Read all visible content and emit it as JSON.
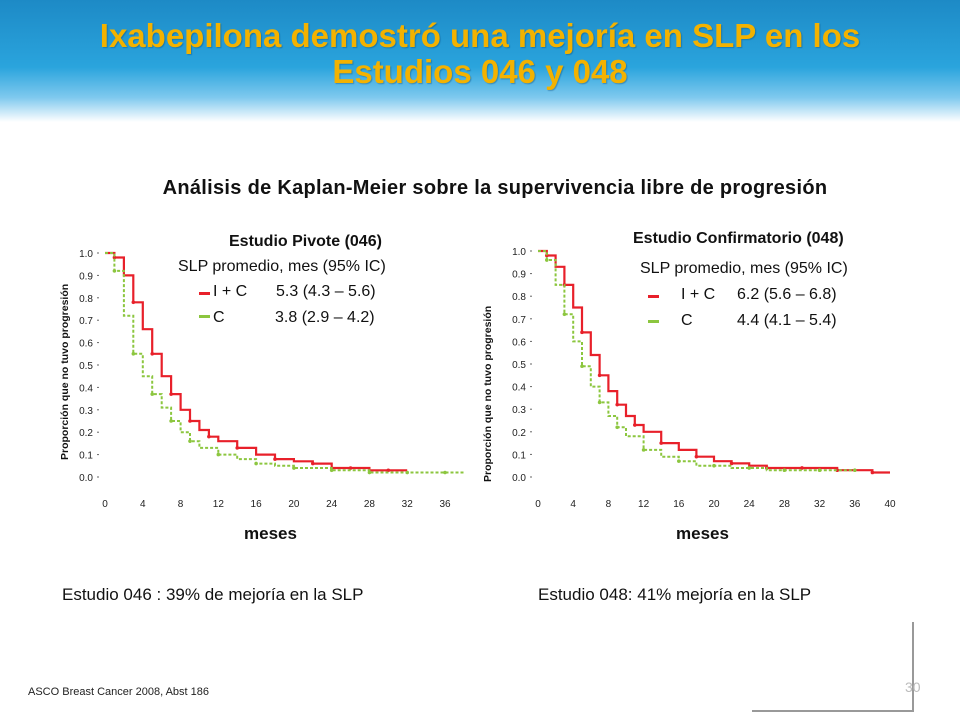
{
  "slide": {
    "title_line1": "Ixabepilona demostró una mejoría en SLP en los",
    "title_line2": "Estudios 046 y 048",
    "subtitle": "Análisis de Kaplan-Meier sobre la supervivencia libre de progresión",
    "reference": "ASCO Breast Cancer 2008, Abst 186",
    "page_number": "30",
    "title_color": "#f3b200"
  },
  "chart_data": [
    {
      "type": "line",
      "title": "Estudio Pivote (046)",
      "legend_header": "SLP promedio, mes (95% IC)",
      "legend": [
        {
          "label": "I + C",
          "value": "5.3 (4.3 – 5.6)",
          "color": "#e8202a"
        },
        {
          "label": "C",
          "value": "3.8 (2.9 – 4.2)",
          "color": "#8cc63f"
        }
      ],
      "xlabel": "meses",
      "ylabel": "Proporción que no tuvo progresión",
      "xticks": [
        "0",
        "4",
        "8",
        "12",
        "16",
        "20",
        "24",
        "28",
        "32",
        "36"
      ],
      "yticks": [
        "0.0",
        "0.1",
        "0.2",
        "0.3",
        "0.4",
        "0.5",
        "0.6",
        "0.7",
        "0.8",
        "0.9",
        "1.0"
      ],
      "xlim": [
        0,
        38
      ],
      "ylim": [
        0,
        1
      ],
      "series": [
        {
          "name": "I + C",
          "color": "#e8202a",
          "x": [
            0,
            1,
            2,
            3,
            4,
            5,
            6,
            7,
            8,
            9,
            10,
            11,
            12,
            14,
            16,
            18,
            20,
            22,
            24,
            26,
            28,
            30,
            32
          ],
          "y": [
            1.0,
            0.98,
            0.9,
            0.78,
            0.66,
            0.55,
            0.45,
            0.37,
            0.3,
            0.25,
            0.21,
            0.18,
            0.16,
            0.13,
            0.1,
            0.08,
            0.07,
            0.06,
            0.04,
            0.04,
            0.03,
            0.03,
            0.03
          ]
        },
        {
          "name": "C",
          "color": "#8cc63f",
          "x": [
            0,
            1,
            2,
            3,
            4,
            5,
            6,
            7,
            8,
            9,
            10,
            12,
            14,
            16,
            18,
            20,
            22,
            24,
            26,
            28,
            30,
            32,
            34,
            36,
            38
          ],
          "y": [
            1.0,
            0.92,
            0.72,
            0.55,
            0.45,
            0.37,
            0.31,
            0.25,
            0.2,
            0.16,
            0.13,
            0.1,
            0.08,
            0.06,
            0.05,
            0.04,
            0.04,
            0.03,
            0.03,
            0.02,
            0.02,
            0.02,
            0.02,
            0.02,
            0.02
          ]
        }
      ]
    },
    {
      "type": "line",
      "title": "Estudio Confirmatorio (048)",
      "legend_header": "SLP promedio, mes (95% IC)",
      "legend": [
        {
          "label": "I + C",
          "value": "6.2 (5.6 – 6.8)",
          "color": "#e8202a"
        },
        {
          "label": "C",
          "value": "4.4 (4.1 – 5.4)",
          "color": "#8cc63f"
        }
      ],
      "xlabel": "meses",
      "ylabel": "Proporción que no tuvo progresión",
      "xticks": [
        "0",
        "4",
        "8",
        "12",
        "16",
        "20",
        "24",
        "28",
        "32",
        "36",
        "40"
      ],
      "yticks": [
        "0.0",
        "0.1",
        "0.2",
        "0.3",
        "0.4",
        "0.5",
        "0.6",
        "0.7",
        "0.8",
        "0.9",
        "1.0"
      ],
      "xlim": [
        0,
        40
      ],
      "ylim": [
        0,
        1
      ],
      "series": [
        {
          "name": "I + C",
          "color": "#e8202a",
          "x": [
            0,
            1,
            2,
            3,
            4,
            5,
            6,
            7,
            8,
            9,
            10,
            11,
            12,
            14,
            16,
            18,
            20,
            22,
            24,
            26,
            28,
            30,
            32,
            34,
            36,
            38,
            40
          ],
          "y": [
            1.0,
            0.98,
            0.93,
            0.85,
            0.75,
            0.64,
            0.54,
            0.45,
            0.38,
            0.32,
            0.27,
            0.23,
            0.2,
            0.15,
            0.12,
            0.09,
            0.07,
            0.06,
            0.05,
            0.04,
            0.04,
            0.04,
            0.04,
            0.03,
            0.03,
            0.02,
            0.02
          ]
        },
        {
          "name": "C",
          "color": "#8cc63f",
          "x": [
            0,
            1,
            2,
            3,
            4,
            5,
            6,
            7,
            8,
            9,
            10,
            12,
            14,
            16,
            18,
            20,
            22,
            24,
            26,
            28,
            30,
            32,
            34,
            36
          ],
          "y": [
            1.0,
            0.96,
            0.85,
            0.72,
            0.6,
            0.49,
            0.4,
            0.33,
            0.27,
            0.22,
            0.18,
            0.12,
            0.09,
            0.07,
            0.05,
            0.05,
            0.04,
            0.04,
            0.03,
            0.03,
            0.03,
            0.03,
            0.03,
            0.03
          ]
        }
      ]
    }
  ],
  "results": {
    "left": "Estudio 046 :  39% de mejoría en la SLP",
    "right": "Estudio 048:  41% mejoría en la SLP"
  }
}
